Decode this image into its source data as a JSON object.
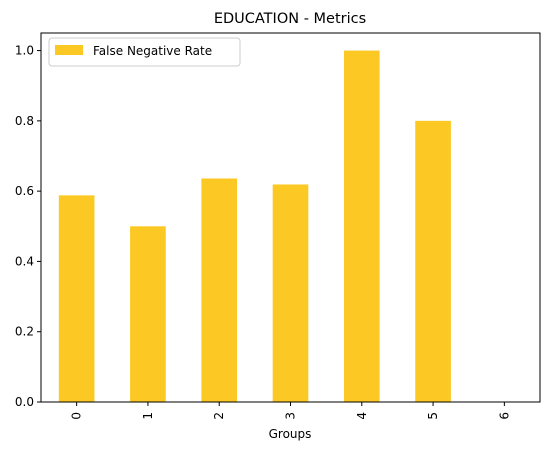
{
  "chart_data": {
    "type": "bar",
    "title": "EDUCATION - Metrics",
    "xlabel": "Groups",
    "ylabel": "",
    "categories": [
      "0",
      "1",
      "2",
      "3",
      "4",
      "5",
      "6"
    ],
    "series": [
      {
        "name": "False Negative Rate",
        "values": [
          0.588,
          0.5,
          0.636,
          0.619,
          1.0,
          0.8,
          0.0
        ],
        "color": "#fcc823"
      }
    ],
    "ylim": [
      0,
      1.05
    ],
    "yticks": [
      0.0,
      0.2,
      0.4,
      0.6,
      0.8,
      1.0
    ],
    "ytick_labels": [
      "0.0",
      "0.2",
      "0.4",
      "0.6",
      "0.8",
      "1.0"
    ],
    "grid": false,
    "legend_position": "top-left"
  }
}
